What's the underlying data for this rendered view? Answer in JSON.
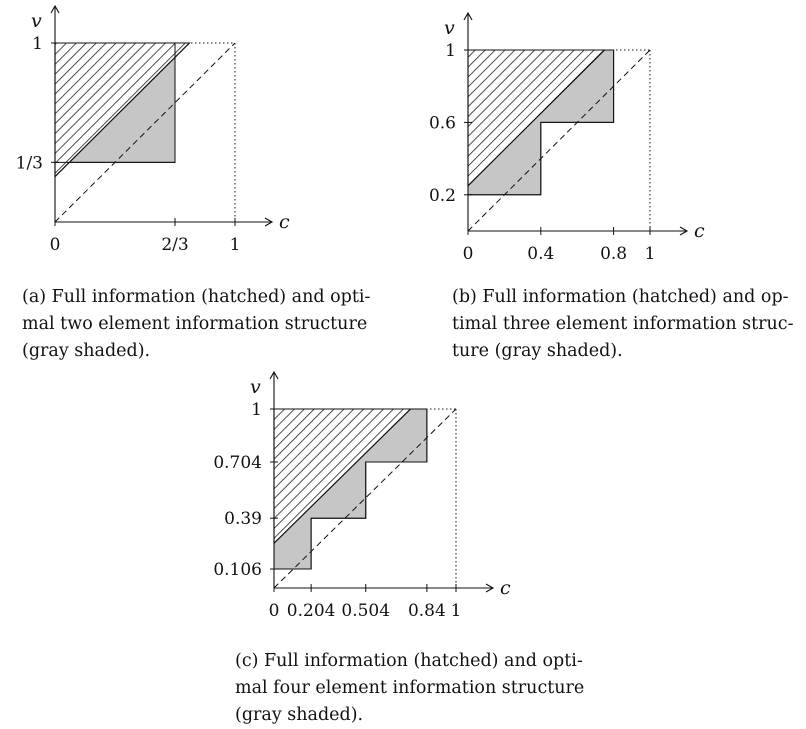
{
  "panels": [
    {
      "id": "a",
      "axis_labels": {
        "x": "c",
        "y": "v"
      },
      "x_ticks": [
        {
          "value": 0,
          "label": "0"
        },
        {
          "value": 0.6667,
          "label": "2/3"
        },
        {
          "value": 1,
          "label": "1"
        }
      ],
      "y_ticks": [
        {
          "value": 0.3333,
          "label": "1/3"
        },
        {
          "value": 1,
          "label": "1"
        }
      ],
      "full_info_triangle": {
        "intercept": 0.3333,
        "cap": 1
      },
      "hatched_extends_past_box": true,
      "gray_steps": [
        {
          "c_from": 0,
          "c_to": 0.6667,
          "v_from": 0.3333,
          "v_to": 1
        }
      ],
      "caption_lines": [
        "(a) Full information (hatched) and opti-",
        "mal two element information structure",
        "(gray shaded)."
      ]
    },
    {
      "id": "b",
      "axis_labels": {
        "x": "c",
        "y": "v"
      },
      "x_ticks": [
        {
          "value": 0,
          "label": "0"
        },
        {
          "value": 0.4,
          "label": "0.4"
        },
        {
          "value": 0.8,
          "label": "0.8"
        },
        {
          "value": 1,
          "label": "1"
        }
      ],
      "y_ticks": [
        {
          "value": 0.2,
          "label": "0.2"
        },
        {
          "value": 0.6,
          "label": "0.6"
        },
        {
          "value": 1,
          "label": "1"
        }
      ],
      "full_info_triangle": {
        "intercept": 0.25,
        "cap": 1
      },
      "hatched_extends_past_box": false,
      "gray_steps": [
        {
          "c_from": 0,
          "c_to": 0.4,
          "v_from": 0.2,
          "v_to": 1
        },
        {
          "c_from": 0.4,
          "c_to": 0.8,
          "v_from": 0.6,
          "v_to": 1
        }
      ],
      "caption_lines": [
        "(b) Full information (hatched) and op-",
        "timal three element information struc-",
        "ture (gray shaded)."
      ]
    },
    {
      "id": "c",
      "axis_labels": {
        "x": "c",
        "y": "v"
      },
      "x_ticks": [
        {
          "value": 0,
          "label": "0"
        },
        {
          "value": 0.204,
          "label": "0.204"
        },
        {
          "value": 0.504,
          "label": "0.504"
        },
        {
          "value": 0.84,
          "label": "0.84"
        },
        {
          "value": 1,
          "label": "1"
        }
      ],
      "y_ticks": [
        {
          "value": 0.106,
          "label": "0.106"
        },
        {
          "value": 0.39,
          "label": "0.39"
        },
        {
          "value": 0.704,
          "label": "0.704"
        },
        {
          "value": 1,
          "label": "1"
        }
      ],
      "full_info_triangle": {
        "intercept": 0.25,
        "cap": 1
      },
      "hatched_extends_past_box": false,
      "gray_steps": [
        {
          "c_from": 0,
          "c_to": 0.204,
          "v_from": 0.106,
          "v_to": 1
        },
        {
          "c_from": 0.204,
          "c_to": 0.504,
          "v_from": 0.39,
          "v_to": 1
        },
        {
          "c_from": 0.504,
          "c_to": 0.84,
          "v_from": 0.704,
          "v_to": 1
        }
      ],
      "caption_lines": [
        "(c) Full information (hatched) and opti-",
        "mal four element information structure",
        "(gray shaded)."
      ]
    }
  ],
  "colors": {
    "gray_fill": "#c6c6c6",
    "hatch_fill": "#6f6f6f",
    "line": "#111111"
  }
}
